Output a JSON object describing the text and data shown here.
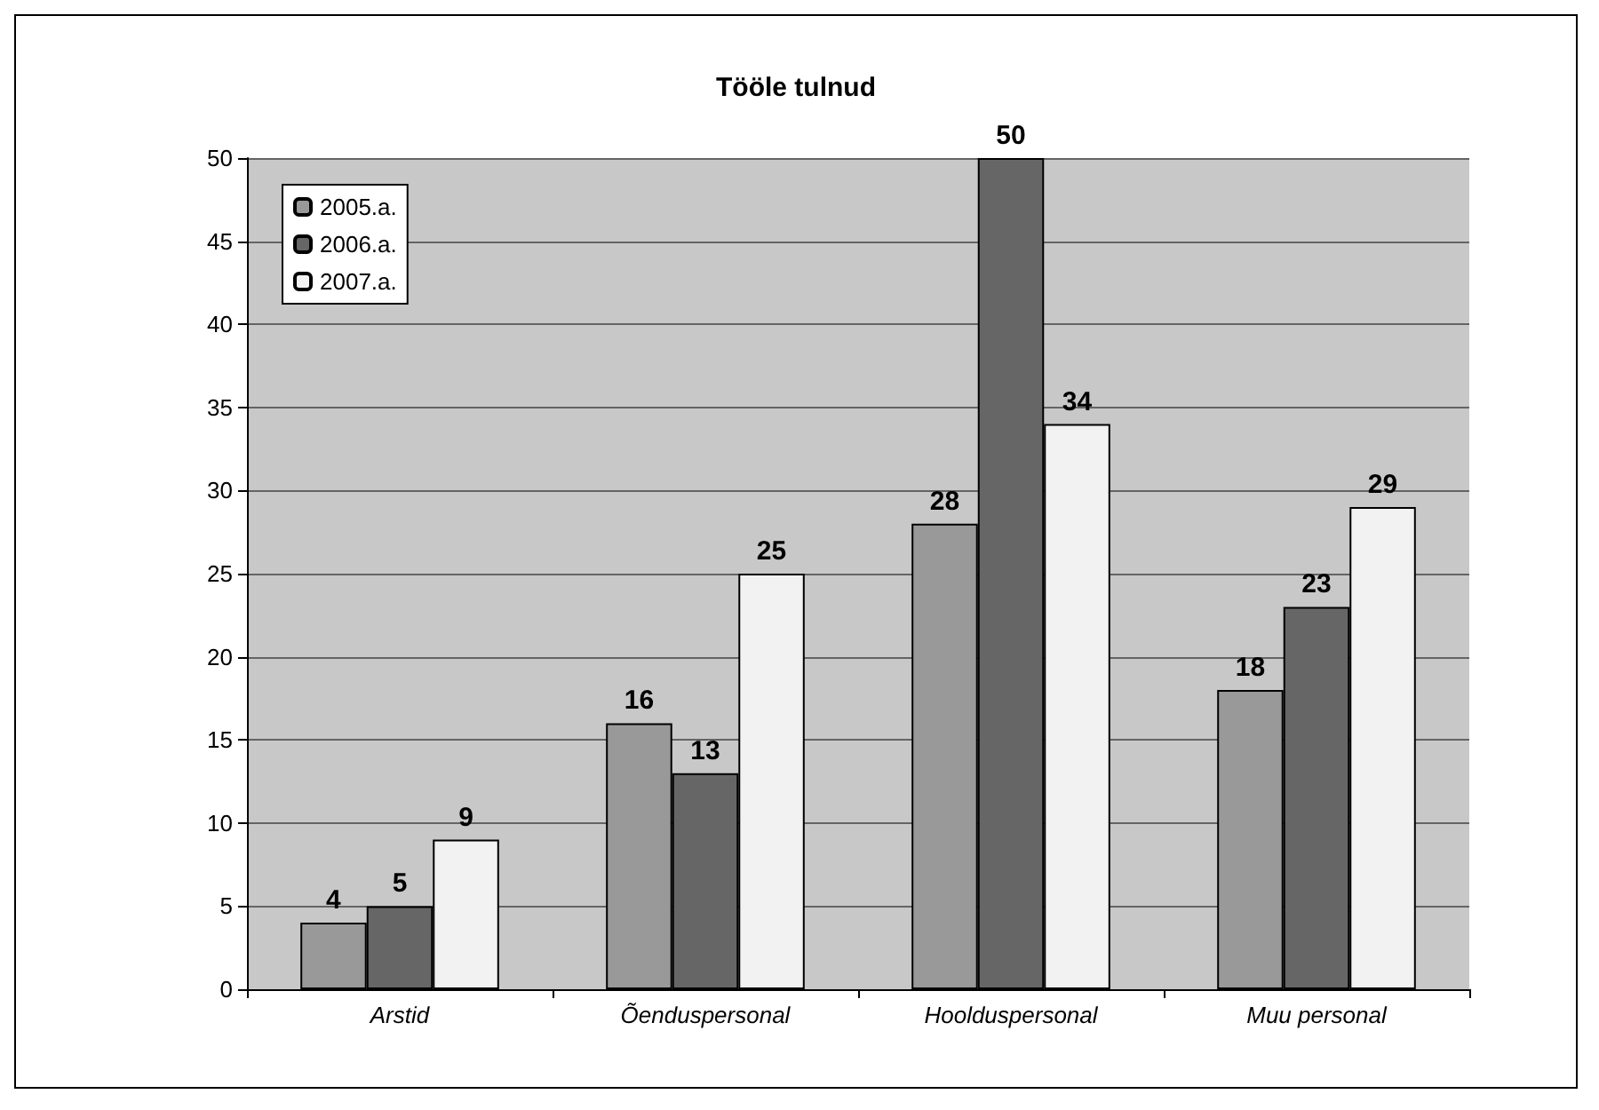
{
  "chart_data": {
    "type": "bar",
    "title": "Tööle tulnud",
    "categories": [
      "Arstid",
      "Õenduspersonal",
      "Hoolduspersonal",
      "Muu personal"
    ],
    "series": [
      {
        "name": "2005.a.",
        "color": "#999999",
        "values": [
          4,
          16,
          28,
          18
        ]
      },
      {
        "name": "2006.a.",
        "color": "#666666",
        "values": [
          5,
          13,
          50,
          23
        ]
      },
      {
        "name": "2007.a.",
        "color": "#f2f2f2",
        "values": [
          9,
          25,
          34,
          29
        ]
      }
    ],
    "ylim": [
      0,
      50
    ],
    "yticks": [
      0,
      5,
      10,
      15,
      20,
      25,
      30,
      35,
      40,
      45,
      50
    ],
    "grid": "y",
    "legend": "top left",
    "data_labels": true
  }
}
